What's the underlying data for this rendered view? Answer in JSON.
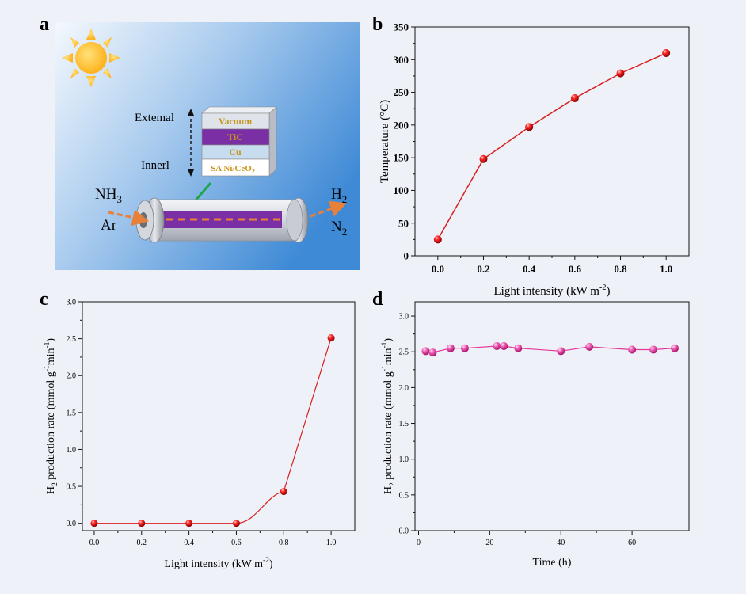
{
  "panels": {
    "a": {
      "letter": "a",
      "layers": [
        "Vacuum",
        "TiC",
        "Cu",
        "SA Ni/CeO"
      ],
      "layer_subscript": "2",
      "direction_top": "Extemal",
      "direction_bottom": "Innerl",
      "gas_in": {
        "species": [
          "NH",
          "Ar"
        ],
        "nh3_subscript": "3"
      },
      "gas_out": {
        "species": [
          "H",
          "N"
        ],
        "subscripts": [
          "2",
          "2"
        ]
      }
    },
    "b": {
      "letter": "b"
    },
    "c": {
      "letter": "c"
    },
    "d": {
      "letter": "d"
    }
  },
  "colors": {
    "series_red": "#d42020",
    "series_pink": "#e2329e",
    "line_red": "#d81e1e",
    "line_pink": "#e6379a",
    "layer_vacuum": "#dfe3ea",
    "layer_tic": "#7a2fa5",
    "layer_cu": "#c8dcf0",
    "layer_sani": "#ffffff",
    "layer_text": "#c8961e",
    "arrow_green": "#1fa54a",
    "arrow_orange": "#e8803a",
    "sun": "#ffc83d"
  },
  "chart_data": [
    {
      "panel": "b",
      "type": "line",
      "x": [
        0.0,
        0.2,
        0.4,
        0.6,
        0.8,
        1.0
      ],
      "y": [
        25,
        148,
        197,
        241,
        279,
        310
      ],
      "xlabel": "Light intensity (kW m",
      "xlabel_sup": "-2",
      "xlabel_end": ")",
      "ylabel": "Temperature (°C)",
      "xlim": [
        -0.1,
        1.1
      ],
      "ylim": [
        0,
        350
      ],
      "xticks": [
        "0.0",
        "0.2",
        "0.4",
        "0.6",
        "0.8",
        "1.0"
      ],
      "yticks": [
        "0",
        "50",
        "100",
        "150",
        "200",
        "250",
        "300",
        "350"
      ],
      "color": "#d42020",
      "grid": false
    },
    {
      "panel": "c",
      "type": "line",
      "x": [
        0.0,
        0.2,
        0.4,
        0.6,
        0.8,
        1.0
      ],
      "y": [
        0.0,
        0.0,
        0.0,
        0.0,
        0.43,
        2.51
      ],
      "xlabel": "Light intensity (kW m",
      "xlabel_sup": "-2",
      "xlabel_end": ")",
      "ylabel_parts": [
        "H",
        "2",
        " production rate (mmol g",
        "-1",
        "min",
        "-1",
        ")"
      ],
      "xlim": [
        -0.05,
        1.1
      ],
      "ylim": [
        -0.1,
        3.0
      ],
      "xticks": [
        "0.0",
        "0.2",
        "0.4",
        "0.6",
        "0.8",
        "1.0"
      ],
      "yticks": [
        "0.0",
        "0.5",
        "1.0",
        "1.5",
        "2.0",
        "2.5",
        "3.0"
      ],
      "color": "#d42020",
      "grid": false
    },
    {
      "panel": "d",
      "type": "line",
      "x": [
        2,
        4,
        9,
        13,
        22,
        24,
        28,
        40,
        48,
        60,
        66,
        72
      ],
      "y": [
        2.51,
        2.49,
        2.55,
        2.55,
        2.58,
        2.58,
        2.55,
        2.51,
        2.57,
        2.53,
        2.53,
        2.55
      ],
      "xlabel": "Time (h)",
      "ylabel_parts": [
        "H",
        "2",
        " production rate (mmol g",
        "-1",
        "min",
        "-1",
        ")"
      ],
      "xlim": [
        -1,
        76
      ],
      "ylim": [
        0,
        3.2
      ],
      "xticks": [
        "0",
        "20",
        "40",
        "60"
      ],
      "yticks": [
        "0.0",
        "0.5",
        "1.0",
        "1.5",
        "2.0",
        "2.5",
        "3.0"
      ],
      "color": "#e2329e",
      "grid": false
    }
  ]
}
